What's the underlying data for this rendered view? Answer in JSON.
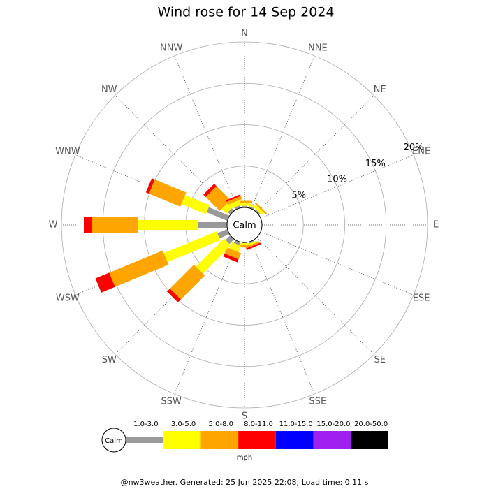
{
  "chart_data": {
    "type": "windrose",
    "title": "Wind rose for 14 Sep 2024",
    "center_label": "Calm",
    "unit": "mph",
    "footer": "@nw3weather. Generated: 25 Jun 2025 22:08; Load time: 0.11 s",
    "categories": [
      "N",
      "NNE",
      "NE",
      "ENE",
      "E",
      "ESE",
      "SE",
      "SSE",
      "S",
      "SSW",
      "SW",
      "WSW",
      "W",
      "WNW",
      "NW",
      "NNW"
    ],
    "rlim": [
      0,
      20
    ],
    "rticks": [
      {
        "value": 5,
        "label": "5%"
      },
      {
        "value": 10,
        "label": "10%"
      },
      {
        "value": 15,
        "label": "15%"
      },
      {
        "value": 20,
        "label": "20%"
      }
    ],
    "series": [
      {
        "name": "1.0-3.0",
        "color": "#999999",
        "values": [
          0.2,
          0.2,
          0.2,
          0,
          0,
          0,
          0,
          0.2,
          0.1,
          0.4,
          0.8,
          1.3,
          3.5,
          2.7,
          0.4,
          0.3
        ]
      },
      {
        "name": "3.0-5.0",
        "color": "#ffff00",
        "values": [
          0.3,
          0.3,
          0.4,
          0,
          0,
          0,
          0,
          0.2,
          0.2,
          0.8,
          4.8,
          6.9,
          7.3,
          3.2,
          0.8,
          0.6
        ]
      },
      {
        "name": "5.0-8.0",
        "color": "#ffa500",
        "values": [
          0.3,
          0,
          0.2,
          0,
          0,
          0,
          0,
          0.2,
          0.2,
          0.8,
          4.1,
          7.0,
          5.5,
          4.1,
          2.4,
          0.4
        ]
      },
      {
        "name": "8.0-11.0",
        "color": "#ff0000",
        "values": [
          0,
          0,
          0,
          0,
          0,
          0,
          0,
          0.2,
          0.1,
          0.4,
          0.5,
          1.8,
          1.0,
          0.4,
          0.4,
          0.2
        ]
      },
      {
        "name": "11.0-15.0",
        "color": "#0000ff",
        "values": [
          0,
          0,
          0,
          0,
          0,
          0,
          0,
          0,
          0,
          0,
          0,
          0,
          0,
          0,
          0,
          0
        ]
      },
      {
        "name": "15.0-20.0",
        "color": "#a020f0",
        "values": [
          0,
          0,
          0,
          0,
          0,
          0,
          0,
          0,
          0,
          0,
          0,
          0,
          0,
          0,
          0,
          0
        ]
      },
      {
        "name": "20.0-50.0",
        "color": "#000000",
        "values": [
          0,
          0,
          0,
          0,
          0,
          0,
          0,
          0,
          0,
          0,
          0,
          0,
          0,
          0,
          0,
          0
        ]
      }
    ]
  }
}
